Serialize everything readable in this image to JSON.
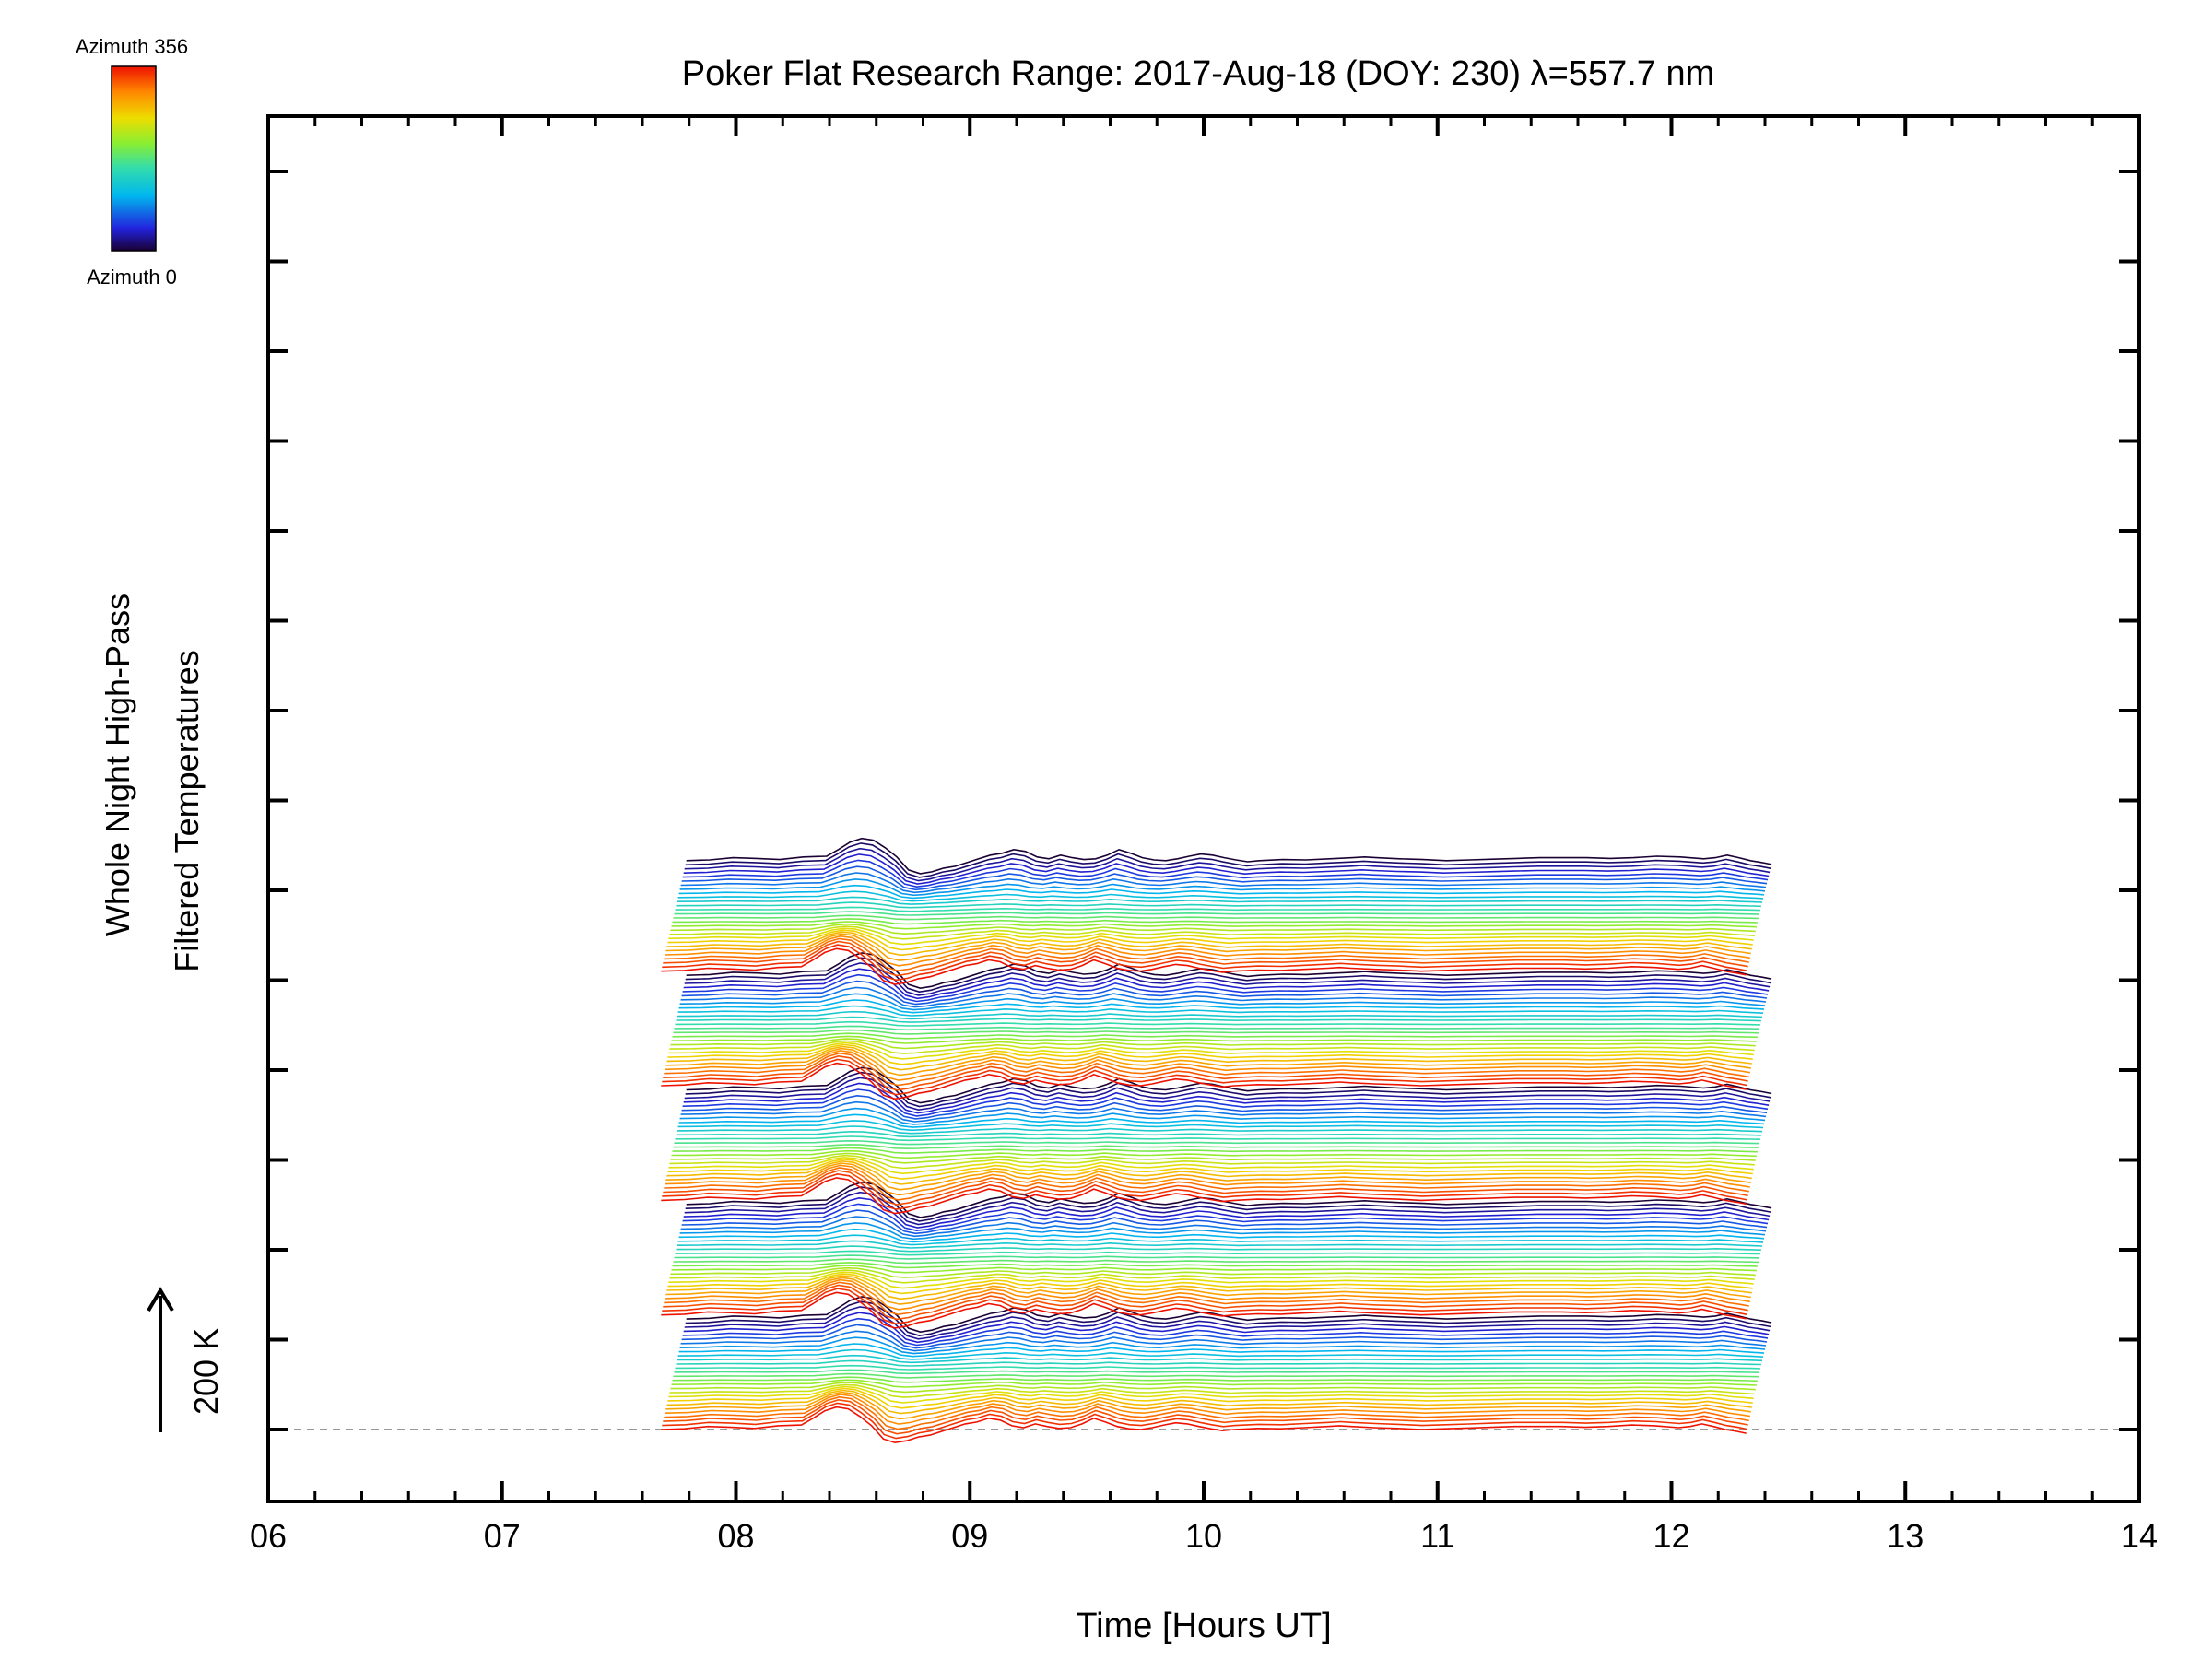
{
  "chart_data": {
    "type": "line",
    "title": "Poker Flat Research Range: 2017-Aug-18 (DOY: 230) λ=557.7 nm",
    "xlabel": "Time [Hours UT]",
    "ylabel_line1": "Whole Night High-Pass",
    "ylabel_line2": "Filtered Temperatures",
    "scale_label": "200 K",
    "colorbar": {
      "top_label": "Azimuth 356",
      "bottom_label": "Azimuth 0",
      "colormap": "rainbow",
      "azimuth_min": 0,
      "azimuth_max": 356
    },
    "xlim": [
      6,
      14
    ],
    "x_tick_labels": [
      "06",
      "07",
      "08",
      "09",
      "10",
      "11",
      "12",
      "13",
      "14"
    ],
    "y_major_ticks": 15,
    "baseline": "dashed-gray",
    "trace_count": 140,
    "trace_offset_kelvin": 30,
    "x": [
      7.68,
      7.78,
      7.88,
      7.98,
      8.08,
      8.18,
      8.28,
      8.33,
      8.38,
      8.43,
      8.48,
      8.53,
      8.58,
      8.63,
      8.68,
      8.73,
      8.78,
      8.83,
      8.88,
      8.93,
      8.98,
      9.03,
      9.08,
      9.13,
      9.18,
      9.23,
      9.28,
      9.33,
      9.38,
      9.43,
      9.48,
      9.53,
      9.58,
      9.63,
      9.68,
      9.73,
      9.78,
      9.83,
      9.88,
      9.93,
      9.98,
      10.03,
      10.08,
      10.13,
      10.23,
      10.33,
      10.43,
      10.53,
      10.58,
      10.63,
      10.73,
      10.83,
      10.93,
      11.03,
      11.13,
      11.23,
      11.33,
      11.43,
      11.53,
      11.63,
      11.73,
      11.83,
      11.93,
      12.03,
      12.08,
      12.13,
      12.18,
      12.23,
      12.28,
      12.32
    ],
    "wave_pattern": [
      0,
      2,
      8,
      6,
      3,
      10,
      12,
      30,
      50,
      60,
      55,
      35,
      10,
      -25,
      -35,
      -30,
      -20,
      -15,
      -5,
      5,
      15,
      20,
      30,
      25,
      10,
      5,
      15,
      8,
      3,
      5,
      15,
      30,
      20,
      8,
      2,
      0,
      5,
      12,
      18,
      15,
      8,
      2,
      -3,
      0,
      3,
      2,
      5,
      8,
      10,
      8,
      5,
      3,
      0,
      2,
      4,
      6,
      8,
      8,
      8,
      6,
      8,
      12,
      10,
      5,
      8,
      15,
      8,
      0,
      -5,
      -10
    ]
  }
}
